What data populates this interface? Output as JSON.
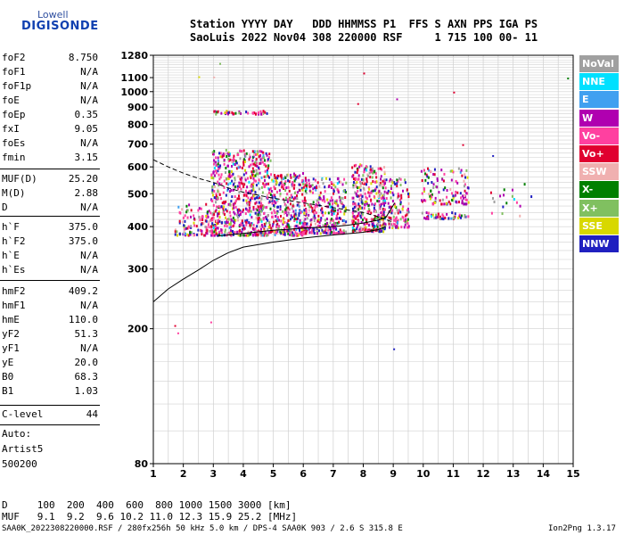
{
  "logo": {
    "line1": "Lowell",
    "line2": "DIGISONDE"
  },
  "header": {
    "labels": "Station YYYY DAY   DDD HHMMSS P1  FFS S AXN PPS IGA PS",
    "values": "SaoLuis 2022 Nov04 308 220000 RSF     1 715 100 00- 11"
  },
  "params_group1": [
    {
      "name": "foF2",
      "value": "8.750"
    },
    {
      "name": "foF1",
      "value": "N/A"
    },
    {
      "name": "foF1p",
      "value": "N/A"
    },
    {
      "name": "foE",
      "value": "N/A"
    },
    {
      "name": "foEp",
      "value": "0.35"
    },
    {
      "name": "fxI",
      "value": "9.05"
    },
    {
      "name": "foEs",
      "value": "N/A"
    },
    {
      "name": "fmin",
      "value": "3.15"
    }
  ],
  "params_group2": [
    {
      "name": "MUF(D)",
      "value": "25.20"
    },
    {
      "name": "M(D)",
      "value": "2.88"
    },
    {
      "name": "D",
      "value": "N/A"
    }
  ],
  "params_group3": [
    {
      "name": "h`F",
      "value": "375.0"
    },
    {
      "name": "h`F2",
      "value": "375.0"
    },
    {
      "name": "h`E",
      "value": "N/A"
    },
    {
      "name": "h`Es",
      "value": "N/A"
    }
  ],
  "params_group4": [
    {
      "name": "hmF2",
      "value": "409.2"
    },
    {
      "name": "hmF1",
      "value": "N/A"
    },
    {
      "name": "hmE",
      "value": "110.0"
    },
    {
      "name": "yF2",
      "value": "51.3"
    },
    {
      "name": "yF1",
      "value": "N/A"
    },
    {
      "name": "yE",
      "value": "20.0"
    },
    {
      "name": "B0",
      "value": "68.3"
    },
    {
      "name": "B1",
      "value": "1.03"
    }
  ],
  "clevel": {
    "name": "C-level",
    "value": "44"
  },
  "auto": {
    "line1": "Auto:",
    "line2": "Artist5",
    "line3": "500200"
  },
  "legend": [
    {
      "label": "NoVal",
      "color": "#a0a0a0"
    },
    {
      "label": "NNE",
      "color": "#00e0ff"
    },
    {
      "label": "E",
      "color": "#40a0f0"
    },
    {
      "label": "W",
      "color": "#b000b0"
    },
    {
      "label": "Vo-",
      "color": "#ff40a0"
    },
    {
      "label": "Vo+",
      "color": "#e00030"
    },
    {
      "label": "SSW",
      "color": "#f0b0b0"
    },
    {
      "label": "X-",
      "color": "#008000"
    },
    {
      "label": "X+",
      "color": "#80c060"
    },
    {
      "label": "SSE",
      "color": "#d8d800"
    },
    {
      "label": "NNW",
      "color": "#2020c0"
    }
  ],
  "muf_table": {
    "d_row": "D     100  200  400  600  800 1000 1500 3000 [km]",
    "muf_row": "MUF   9.1  9.2  9.6 10.2 11.0 12.3 15.9 25.2 [MHz]"
  },
  "footer": {
    "left": "SAA0K_2022308220000.RSF / 280fx256h 50 kHz 5.0 km / DPS-4 SAA0K 903 / 2.6 S 315.8 E",
    "right": "Ion2Png 1.3.17"
  },
  "chart_data": {
    "type": "scatter",
    "title": "",
    "xlabel": "",
    "ylabel": "",
    "xlim": [
      1,
      15
    ],
    "ylim": [
      80,
      1280
    ],
    "y_scale": "log",
    "x_ticks": [
      1,
      2,
      3,
      4,
      5,
      6,
      7,
      8,
      9,
      10,
      11,
      12,
      13,
      14,
      15
    ],
    "y_ticks": [
      80,
      200,
      300,
      400,
      500,
      600,
      700,
      800,
      900,
      1000,
      1100,
      1280
    ],
    "grid": true,
    "echo_clusters": [
      {
        "x_range": [
          1.7,
          3.0
        ],
        "y_range": [
          380,
          470
        ],
        "density": 120
      },
      {
        "x_range": [
          2.9,
          4.9
        ],
        "y_range": [
          380,
          680
        ],
        "density": 700
      },
      {
        "x_range": [
          4.9,
          6.1
        ],
        "y_range": [
          380,
          580
        ],
        "density": 320
      },
      {
        "x_range": [
          6.0,
          7.4
        ],
        "y_range": [
          385,
          560
        ],
        "density": 300
      },
      {
        "x_range": [
          7.6,
          8.7
        ],
        "y_range": [
          390,
          620
        ],
        "density": 340
      },
      {
        "x_range": [
          8.6,
          9.5
        ],
        "y_range": [
          400,
          560
        ],
        "density": 150
      },
      {
        "x_range": [
          9.9,
          11.5
        ],
        "y_range": [
          470,
          600
        ],
        "density": 120
      },
      {
        "x_range": [
          9.9,
          11.5
        ],
        "y_range": [
          425,
          445
        ],
        "density": 50
      },
      {
        "x_range": [
          2.95,
          4.8
        ],
        "y_range": [
          865,
          885
        ],
        "density": 40
      },
      {
        "x_range": [
          12.1,
          13.6
        ],
        "y_range": [
          430,
          540
        ],
        "density": 18
      }
    ],
    "series": [
      {
        "style": "solid",
        "x": [
          1.0,
          1.5,
          2.0,
          2.5,
          3.0,
          3.5,
          4.0,
          5.0,
          6.0,
          7.0,
          8.0,
          8.5,
          8.75
        ],
        "y": [
          240,
          262,
          280,
          298,
          318,
          335,
          348,
          360,
          370,
          378,
          385,
          392,
          400
        ]
      },
      {
        "style": "dashed",
        "x": [
          1.0,
          1.5,
          2.0,
          2.5,
          3.0,
          3.5,
          4.0,
          5.0,
          6.0,
          7.0,
          8.0,
          8.5,
          8.75,
          9.0
        ],
        "y": [
          630,
          600,
          575,
          555,
          540,
          520,
          505,
          485,
          470,
          455,
          440,
          428,
          420,
          412
        ]
      },
      {
        "style": "solid",
        "x": [
          3.15,
          3.5,
          4.0,
          4.5,
          5.0,
          5.5,
          6.0,
          6.5,
          7.0,
          7.5,
          8.0,
          8.5,
          8.75,
          9.05
        ],
        "y": [
          375,
          378,
          382,
          386,
          390,
          393,
          396,
          398,
          400,
          404,
          410,
          418,
          425,
          470
        ]
      }
    ],
    "isolated_points": [
      {
        "x": 3.2,
        "y": 1215
      },
      {
        "x": 2.5,
        "y": 1110
      },
      {
        "x": 3.0,
        "y": 1108
      },
      {
        "x": 8.0,
        "y": 1138
      },
      {
        "x": 11.0,
        "y": 1000
      },
      {
        "x": 14.8,
        "y": 1100
      },
      {
        "x": 7.8,
        "y": 925
      },
      {
        "x": 9.1,
        "y": 955
      },
      {
        "x": 1.7,
        "y": 205
      },
      {
        "x": 1.8,
        "y": 195
      },
      {
        "x": 2.9,
        "y": 210
      },
      {
        "x": 9.0,
        "y": 175
      },
      {
        "x": 12.3,
        "y": 650
      },
      {
        "x": 11.3,
        "y": 700
      }
    ]
  }
}
